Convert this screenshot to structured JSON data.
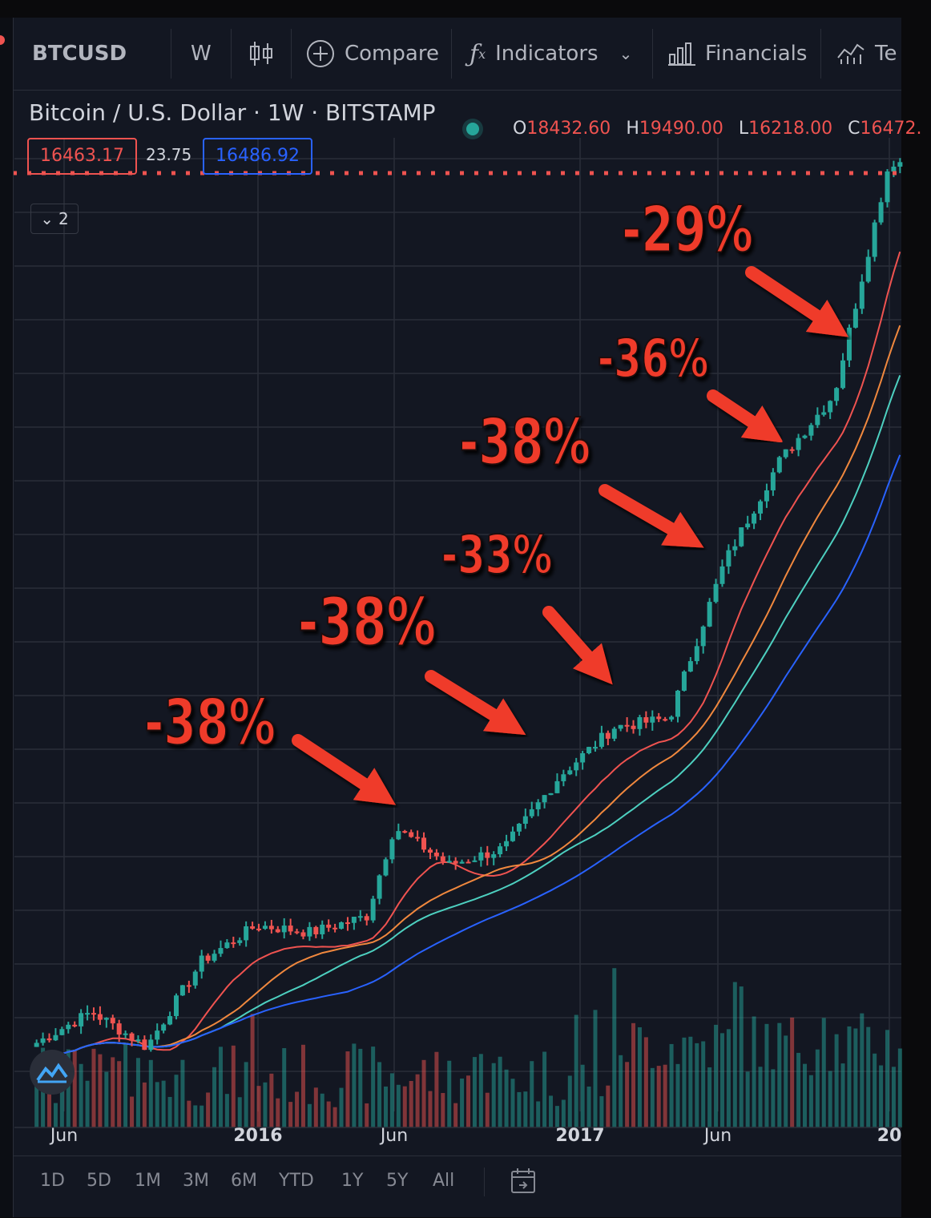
{
  "toolbar": {
    "symbol": "BTCUSD",
    "interval": "W",
    "compare_label": "Compare",
    "indicators_label": "Indicators",
    "financials_label": "Financials",
    "templates_label": "Te",
    "icons": [
      "candles-icon",
      "plus-circle-icon",
      "fx-icon",
      "chevron-down-icon",
      "bar-chart-icon",
      "templates-icon"
    ]
  },
  "legend": {
    "title": "Bitcoin / U.S. Dollar · 1W · BITSTAMP",
    "open_label": "O",
    "open": "18432.60",
    "high_label": "H",
    "high": "19490.00",
    "low_label": "L",
    "low": "16218.00",
    "close_label": "C",
    "close": "16472.",
    "bid": "16463.17",
    "spread": "23.75",
    "ask": "16486.92",
    "collapse_count": "2"
  },
  "bottom": {
    "ranges": [
      "1D",
      "5D",
      "1M",
      "3M",
      "6M",
      "YTD",
      "1Y",
      "5Y",
      "All"
    ]
  },
  "colors": {
    "background": "#131722",
    "up": "#26a69a",
    "down": "#ef5350",
    "ma_red": "#ef5350",
    "ma_orange": "#f0883e",
    "ma_teal": "#4dd0c0",
    "ma_blue": "#2962ff",
    "annotation": "#ef3b2c"
  },
  "chart_data": {
    "type": "line",
    "x_tick_labels": [
      "Jun",
      "2016",
      "Jun",
      "2017",
      "Jun",
      "20"
    ],
    "x": [
      "2015-05",
      "2015-07",
      "2015-09",
      "2015-11",
      "2016-01",
      "2016-03",
      "2016-05",
      "2016-06",
      "2016-08",
      "2016-10",
      "2016-12",
      "2017-02",
      "2017-04",
      "2017-06",
      "2017-08",
      "2017-10",
      "2017-12"
    ],
    "series": [
      {
        "values": [
          240,
          280,
          235,
          360,
          430,
          415,
          450,
          700,
          580,
          630,
          900,
          1150,
          1200,
          2600,
          4300,
          6000,
          19000
        ]
      }
    ],
    "current_price": 16463.17,
    "annotations": [
      "-38%",
      "-38%",
      "-33%",
      "-38%",
      "-36%",
      "-29%"
    ]
  }
}
